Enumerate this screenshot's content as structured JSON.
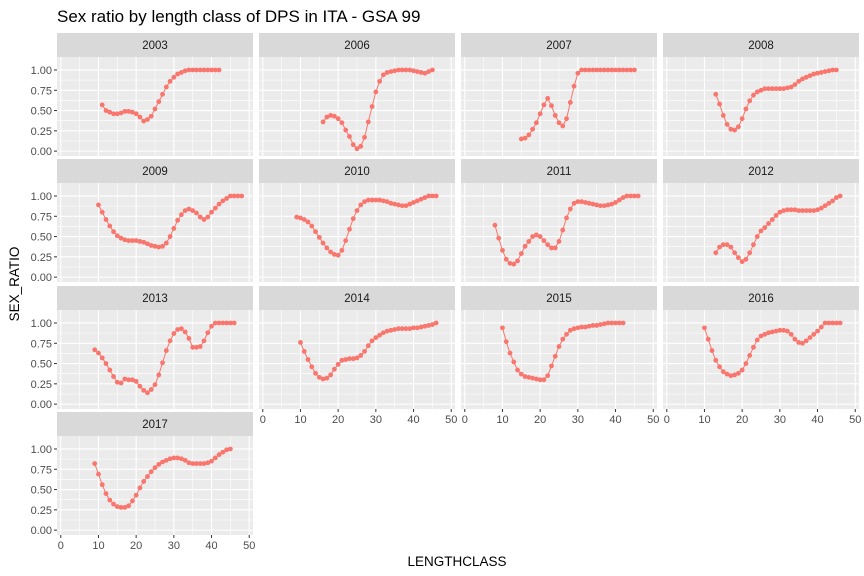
{
  "chart_data": {
    "type": "scatter",
    "title": "Sex ratio by length class of DPS in ITA - GSA 99",
    "xlabel": "LENGTHCLASS",
    "ylabel": "SEX_RATIO",
    "xlim": [
      -1,
      51
    ],
    "ylim": [
      -0.06,
      1.16
    ],
    "xticks": [
      0,
      10,
      20,
      30,
      40,
      50
    ],
    "yticks": [
      0.0,
      0.25,
      0.5,
      0.75,
      1.0
    ],
    "ytick_labels": [
      "0.00",
      "0.25",
      "0.50",
      "0.75",
      "1.00"
    ],
    "layout": "facet-wrap 4 columns",
    "grid": true,
    "point_color": "#F8766D",
    "panels": [
      {
        "label": "2003",
        "x": [
          11,
          12,
          13,
          14,
          15,
          16,
          17,
          18,
          19,
          20,
          21,
          22,
          23,
          24,
          25,
          26,
          27,
          28,
          29,
          30,
          31,
          32,
          33,
          34,
          35,
          36,
          37,
          38,
          39,
          40,
          41,
          42
        ],
        "y": [
          0.57,
          0.5,
          0.48,
          0.46,
          0.46,
          0.47,
          0.49,
          0.49,
          0.48,
          0.46,
          0.42,
          0.37,
          0.39,
          0.43,
          0.52,
          0.61,
          0.7,
          0.79,
          0.86,
          0.91,
          0.95,
          0.97,
          0.99,
          1.0,
          1.0,
          1.0,
          1.0,
          1.0,
          1.0,
          1.0,
          1.0,
          1.0
        ]
      },
      {
        "label": "2006",
        "x": [
          16,
          17,
          18,
          19,
          20,
          21,
          22,
          23,
          24,
          25,
          26,
          27,
          28,
          29,
          30,
          31,
          32,
          33,
          34,
          35,
          36,
          37,
          38,
          39,
          40,
          41,
          42,
          43,
          44,
          45
        ],
        "y": [
          0.36,
          0.42,
          0.44,
          0.43,
          0.4,
          0.35,
          0.26,
          0.18,
          0.08,
          0.03,
          0.06,
          0.17,
          0.36,
          0.55,
          0.73,
          0.86,
          0.94,
          0.97,
          0.98,
          0.99,
          1.0,
          1.0,
          1.0,
          1.0,
          0.99,
          0.98,
          0.97,
          0.96,
          0.98,
          1.0
        ]
      },
      {
        "label": "2007",
        "x": [
          15,
          16,
          17,
          18,
          19,
          20,
          21,
          22,
          23,
          24,
          25,
          26,
          27,
          28,
          29,
          30,
          31,
          32,
          33,
          34,
          35,
          36,
          37,
          38,
          39,
          40,
          41,
          42,
          43,
          44,
          45
        ],
        "y": [
          0.15,
          0.16,
          0.2,
          0.27,
          0.35,
          0.46,
          0.57,
          0.65,
          0.56,
          0.44,
          0.35,
          0.31,
          0.4,
          0.6,
          0.8,
          0.96,
          1.0,
          1.0,
          1.0,
          1.0,
          1.0,
          1.0,
          1.0,
          1.0,
          1.0,
          1.0,
          1.0,
          1.0,
          1.0,
          1.0,
          1.0
        ]
      },
      {
        "label": "2008",
        "x": [
          13,
          14,
          15,
          16,
          17,
          18,
          19,
          20,
          21,
          22,
          23,
          24,
          25,
          26,
          27,
          28,
          29,
          30,
          31,
          32,
          33,
          34,
          35,
          36,
          37,
          38,
          39,
          40,
          41,
          42,
          43,
          44,
          45
        ],
        "y": [
          0.7,
          0.58,
          0.44,
          0.33,
          0.27,
          0.26,
          0.3,
          0.4,
          0.52,
          0.62,
          0.69,
          0.73,
          0.75,
          0.77,
          0.77,
          0.77,
          0.77,
          0.77,
          0.77,
          0.78,
          0.79,
          0.82,
          0.86,
          0.89,
          0.91,
          0.93,
          0.95,
          0.96,
          0.97,
          0.98,
          0.99,
          1.0,
          1.0
        ]
      },
      {
        "label": "2009",
        "x": [
          10,
          11,
          12,
          13,
          14,
          15,
          16,
          17,
          18,
          19,
          20,
          21,
          22,
          23,
          24,
          25,
          26,
          27,
          28,
          29,
          30,
          31,
          32,
          33,
          34,
          35,
          36,
          37,
          38,
          39,
          40,
          41,
          42,
          43,
          44,
          45,
          46,
          47,
          48
        ],
        "y": [
          0.89,
          0.8,
          0.71,
          0.63,
          0.56,
          0.51,
          0.48,
          0.46,
          0.45,
          0.45,
          0.45,
          0.44,
          0.43,
          0.41,
          0.39,
          0.38,
          0.37,
          0.38,
          0.42,
          0.5,
          0.6,
          0.7,
          0.77,
          0.82,
          0.84,
          0.82,
          0.79,
          0.74,
          0.71,
          0.74,
          0.8,
          0.85,
          0.9,
          0.94,
          0.97,
          1.0,
          1.0,
          1.0,
          1.0
        ]
      },
      {
        "label": "2010",
        "x": [
          9,
          10,
          11,
          12,
          13,
          14,
          15,
          16,
          17,
          18,
          19,
          20,
          21,
          22,
          23,
          24,
          25,
          26,
          27,
          28,
          29,
          30,
          31,
          32,
          33,
          34,
          35,
          36,
          37,
          38,
          39,
          40,
          41,
          42,
          43,
          44,
          45,
          46
        ],
        "y": [
          0.74,
          0.73,
          0.71,
          0.68,
          0.63,
          0.56,
          0.49,
          0.42,
          0.36,
          0.31,
          0.28,
          0.27,
          0.33,
          0.45,
          0.59,
          0.72,
          0.82,
          0.89,
          0.93,
          0.95,
          0.95,
          0.95,
          0.95,
          0.94,
          0.93,
          0.91,
          0.9,
          0.89,
          0.88,
          0.88,
          0.9,
          0.92,
          0.94,
          0.96,
          0.98,
          1.0,
          1.0,
          1.0
        ]
      },
      {
        "label": "2011",
        "x": [
          8,
          9,
          10,
          11,
          12,
          13,
          14,
          15,
          16,
          17,
          18,
          19,
          20,
          21,
          22,
          23,
          24,
          25,
          26,
          27,
          28,
          29,
          30,
          31,
          32,
          33,
          34,
          35,
          36,
          37,
          38,
          39,
          40,
          41,
          42,
          43,
          44,
          45,
          46
        ],
        "y": [
          0.64,
          0.48,
          0.33,
          0.22,
          0.17,
          0.16,
          0.2,
          0.29,
          0.38,
          0.44,
          0.5,
          0.52,
          0.5,
          0.45,
          0.4,
          0.36,
          0.36,
          0.44,
          0.58,
          0.73,
          0.84,
          0.91,
          0.93,
          0.93,
          0.92,
          0.91,
          0.9,
          0.89,
          0.88,
          0.88,
          0.89,
          0.9,
          0.92,
          0.95,
          0.98,
          1.0,
          1.0,
          1.0,
          1.0
        ]
      },
      {
        "label": "2012",
        "x": [
          13,
          14,
          15,
          16,
          17,
          18,
          19,
          20,
          21,
          22,
          23,
          24,
          25,
          26,
          27,
          28,
          29,
          30,
          31,
          32,
          33,
          34,
          35,
          36,
          37,
          38,
          39,
          40,
          41,
          42,
          43,
          44,
          45,
          46
        ],
        "y": [
          0.3,
          0.37,
          0.4,
          0.4,
          0.37,
          0.3,
          0.24,
          0.19,
          0.22,
          0.3,
          0.4,
          0.5,
          0.57,
          0.61,
          0.66,
          0.71,
          0.76,
          0.8,
          0.82,
          0.83,
          0.83,
          0.83,
          0.82,
          0.82,
          0.82,
          0.82,
          0.82,
          0.83,
          0.85,
          0.88,
          0.91,
          0.94,
          0.98,
          1.0
        ]
      },
      {
        "label": "2013",
        "x": [
          9,
          10,
          11,
          12,
          13,
          14,
          15,
          16,
          17,
          18,
          19,
          20,
          21,
          22,
          23,
          24,
          25,
          26,
          27,
          28,
          29,
          30,
          31,
          32,
          33,
          34,
          35,
          36,
          37,
          38,
          39,
          40,
          41,
          42,
          43,
          44,
          45,
          46
        ],
        "y": [
          0.67,
          0.63,
          0.57,
          0.5,
          0.42,
          0.34,
          0.27,
          0.26,
          0.31,
          0.3,
          0.3,
          0.28,
          0.22,
          0.17,
          0.14,
          0.18,
          0.24,
          0.36,
          0.51,
          0.66,
          0.78,
          0.87,
          0.92,
          0.93,
          0.89,
          0.81,
          0.7,
          0.7,
          0.71,
          0.78,
          0.88,
          0.96,
          1.0,
          1.0,
          1.0,
          1.0,
          1.0,
          1.0
        ]
      },
      {
        "label": "2014",
        "x": [
          10,
          11,
          12,
          13,
          14,
          15,
          16,
          17,
          18,
          19,
          20,
          21,
          22,
          23,
          24,
          25,
          26,
          27,
          28,
          29,
          30,
          31,
          32,
          33,
          34,
          35,
          36,
          37,
          38,
          39,
          40,
          41,
          42,
          43,
          44,
          45,
          46
        ],
        "y": [
          0.76,
          0.65,
          0.55,
          0.46,
          0.38,
          0.33,
          0.31,
          0.32,
          0.36,
          0.43,
          0.49,
          0.54,
          0.55,
          0.56,
          0.56,
          0.57,
          0.6,
          0.65,
          0.72,
          0.78,
          0.82,
          0.85,
          0.88,
          0.9,
          0.91,
          0.92,
          0.93,
          0.93,
          0.93,
          0.93,
          0.94,
          0.94,
          0.95,
          0.96,
          0.97,
          0.98,
          1.0
        ]
      },
      {
        "label": "2015",
        "x": [
          10,
          11,
          12,
          13,
          14,
          15,
          16,
          17,
          18,
          19,
          20,
          21,
          22,
          23,
          24,
          25,
          26,
          27,
          28,
          29,
          30,
          31,
          32,
          33,
          34,
          35,
          36,
          37,
          38,
          39,
          40,
          41,
          42
        ],
        "y": [
          0.94,
          0.77,
          0.63,
          0.52,
          0.42,
          0.37,
          0.34,
          0.33,
          0.32,
          0.31,
          0.3,
          0.3,
          0.35,
          0.47,
          0.59,
          0.71,
          0.8,
          0.86,
          0.91,
          0.93,
          0.94,
          0.95,
          0.95,
          0.96,
          0.97,
          0.97,
          0.98,
          0.99,
          1.0,
          1.0,
          1.0,
          1.0,
          1.0
        ]
      },
      {
        "label": "2016",
        "x": [
          10,
          11,
          12,
          13,
          14,
          15,
          16,
          17,
          18,
          19,
          20,
          21,
          22,
          23,
          24,
          25,
          26,
          27,
          28,
          29,
          30,
          31,
          32,
          33,
          34,
          35,
          36,
          37,
          38,
          39,
          40,
          41,
          42,
          43,
          44,
          45,
          46
        ],
        "y": [
          0.94,
          0.8,
          0.66,
          0.54,
          0.46,
          0.4,
          0.37,
          0.35,
          0.36,
          0.38,
          0.42,
          0.5,
          0.6,
          0.7,
          0.79,
          0.84,
          0.86,
          0.88,
          0.89,
          0.9,
          0.91,
          0.91,
          0.9,
          0.86,
          0.8,
          0.76,
          0.75,
          0.78,
          0.82,
          0.86,
          0.9,
          0.95,
          1.0,
          1.0,
          1.0,
          1.0,
          1.0
        ]
      },
      {
        "label": "2017",
        "x": [
          9,
          10,
          11,
          12,
          13,
          14,
          15,
          16,
          17,
          18,
          19,
          20,
          21,
          22,
          23,
          24,
          25,
          26,
          27,
          28,
          29,
          30,
          31,
          32,
          33,
          34,
          35,
          36,
          37,
          38,
          39,
          40,
          41,
          42,
          43,
          44,
          45
        ],
        "y": [
          0.82,
          0.69,
          0.56,
          0.45,
          0.37,
          0.32,
          0.29,
          0.28,
          0.28,
          0.3,
          0.36,
          0.43,
          0.52,
          0.6,
          0.66,
          0.72,
          0.77,
          0.81,
          0.84,
          0.86,
          0.88,
          0.89,
          0.89,
          0.88,
          0.86,
          0.83,
          0.82,
          0.82,
          0.82,
          0.82,
          0.83,
          0.85,
          0.89,
          0.93,
          0.96,
          0.99,
          1.0
        ]
      }
    ]
  }
}
